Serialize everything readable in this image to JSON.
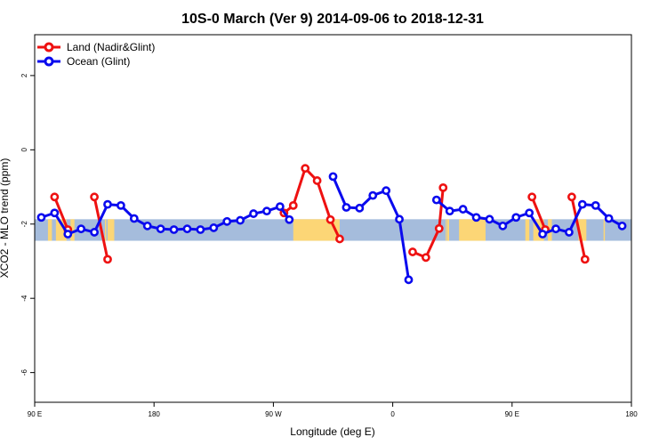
{
  "chart_data": {
    "type": "line",
    "title": "10S-0 March (Ver 9)   2014-09-06 to 2018-12-31",
    "xlabel": "Longitude (deg E)",
    "ylabel": "XCO2 - MLO trend (ppm)",
    "xlim": [
      90,
      540
    ],
    "ylim": [
      -6.8,
      3.1
    ],
    "x_ticks": [
      {
        "value": 90,
        "label": "90 E"
      },
      {
        "value": 180,
        "label": "180"
      },
      {
        "value": 270,
        "label": "90 W"
      },
      {
        "value": 360,
        "label": "0"
      },
      {
        "value": 450,
        "label": "90 E"
      },
      {
        "value": 540,
        "label": "180"
      }
    ],
    "y_ticks": [
      {
        "value": 2,
        "label": "2"
      },
      {
        "value": 0,
        "label": "0"
      },
      {
        "value": -2,
        "label": "-2"
      },
      {
        "value": -4,
        "label": "-4"
      },
      {
        "value": -6,
        "label": "-6"
      }
    ],
    "background_band": {
      "y_range": [
        -2.45,
        -1.87
      ],
      "water_color": "#a5bcdc",
      "land_color": "#fcd676"
    },
    "land_segments": [
      [
        100,
        103
      ],
      [
        106,
        114
      ],
      [
        117,
        120
      ],
      [
        143,
        144
      ],
      [
        145,
        150
      ],
      [
        285,
        320
      ],
      [
        400,
        400.5
      ],
      [
        401,
        402.5
      ],
      [
        410,
        430
      ],
      [
        460,
        463
      ],
      [
        466,
        474
      ],
      [
        477,
        480
      ],
      [
        500,
        506
      ],
      [
        519,
        520
      ]
    ],
    "series": [
      {
        "name": "Land (Nadir&Glint)",
        "color": "#ee1111",
        "segments": [
          [
            [
              105,
              -1.27
            ],
            [
              115,
              -2.15
            ]
          ],
          [
            [
              135,
              -1.27
            ],
            [
              145,
              -2.95
            ]
          ],
          [
            [
              278,
              -1.7
            ],
            [
              285,
              -1.5
            ],
            [
              294,
              -0.5
            ],
            [
              303,
              -0.83
            ],
            [
              313,
              -1.88
            ],
            [
              320,
              -2.4
            ]
          ],
          [
            [
              375,
              -2.75
            ],
            [
              385,
              -2.9
            ],
            [
              395,
              -2.12
            ],
            [
              398,
              -1.02
            ]
          ],
          [
            [
              465,
              -1.27
            ],
            [
              475,
              -2.15
            ]
          ],
          [
            [
              495,
              -1.27
            ],
            [
              505,
              -2.95
            ]
          ]
        ]
      },
      {
        "name": "Ocean (Glint)",
        "color": "#0a0aee",
        "segments": [
          [
            [
              95,
              -1.82
            ],
            [
              105,
              -1.7
            ],
            [
              115,
              -2.27
            ],
            [
              125,
              -2.13
            ],
            [
              135,
              -2.22
            ],
            [
              145,
              -1.47
            ],
            [
              155,
              -1.5
            ],
            [
              165,
              -1.85
            ],
            [
              175,
              -2.05
            ],
            [
              185,
              -2.13
            ],
            [
              195,
              -2.15
            ],
            [
              205,
              -2.13
            ],
            [
              215,
              -2.15
            ],
            [
              225,
              -2.1
            ],
            [
              235,
              -1.93
            ],
            [
              245,
              -1.9
            ],
            [
              255,
              -1.72
            ],
            [
              265,
              -1.65
            ],
            [
              275,
              -1.53
            ],
            [
              282,
              -1.88
            ]
          ],
          [
            [
              315,
              -0.72
            ],
            [
              325,
              -1.55
            ],
            [
              335,
              -1.57
            ],
            [
              345,
              -1.23
            ],
            [
              355,
              -1.1
            ],
            [
              365,
              -1.87
            ],
            [
              372,
              -3.5
            ]
          ],
          [
            [
              393,
              -1.35
            ],
            [
              403,
              -1.65
            ],
            [
              413,
              -1.6
            ],
            [
              423,
              -1.82
            ],
            [
              433,
              -1.87
            ],
            [
              443,
              -2.05
            ],
            [
              453,
              -1.82
            ],
            [
              463,
              -1.7
            ],
            [
              473,
              -2.27
            ],
            [
              483,
              -2.13
            ],
            [
              493,
              -2.22
            ],
            [
              503,
              -1.47
            ],
            [
              513,
              -1.5
            ],
            [
              523,
              -1.85
            ],
            [
              533,
              -2.05
            ]
          ]
        ]
      }
    ],
    "legend": {
      "position": "top-left"
    }
  }
}
